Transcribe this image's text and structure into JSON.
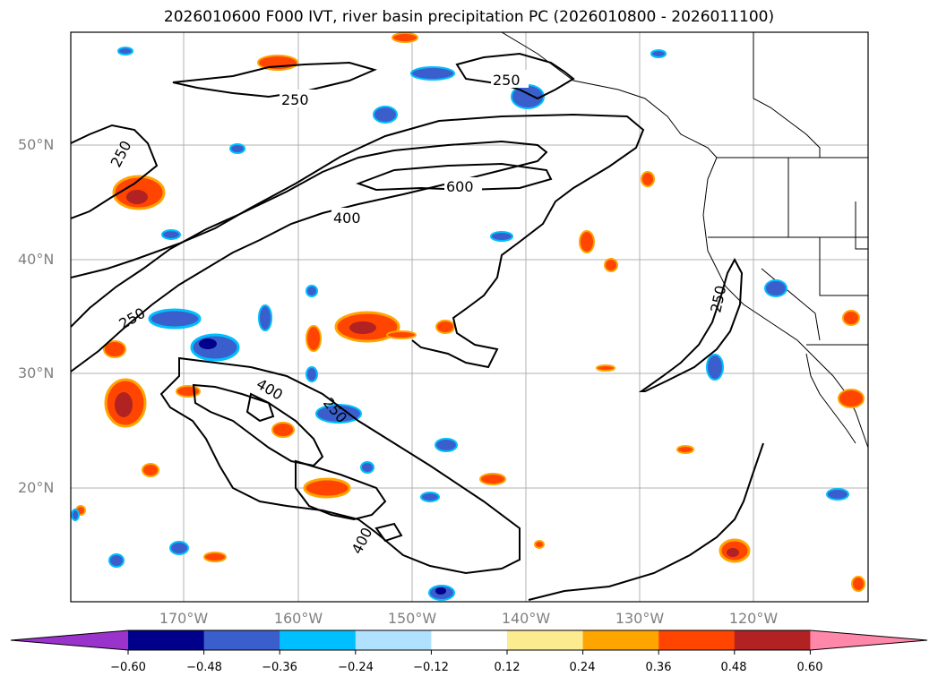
{
  "title": "2026010600 F000 IVT, river basin precipitation PC (2026010800 - 2026011100)",
  "map": {
    "lat_labels": [
      "50°N",
      "40°N",
      "30°N",
      "20°N"
    ],
    "lon_labels": [
      "170°W",
      "160°W",
      "150°W",
      "140°W",
      "130°W",
      "120°W"
    ],
    "contour_labels": [
      "250",
      "250",
      "250",
      "250",
      "250",
      "400",
      "400",
      "400",
      "600",
      "250"
    ]
  },
  "colorbar": {
    "ticks": [
      "−0.60",
      "−0.48",
      "−0.36",
      "−0.24",
      "−0.12",
      "0.12",
      "0.24",
      "0.36",
      "0.48",
      "0.60"
    ],
    "colors": [
      "#9933cc",
      "#00008b",
      "#3a5fcd",
      "#00bfff",
      "#b0e2ff",
      "#ffffff",
      "#fdeb8f",
      "#ffa500",
      "#ff4500",
      "#b22222",
      "#ff88aa"
    ]
  },
  "colors": {
    "contour": "#000000",
    "grid": "#b0b0b0"
  }
}
